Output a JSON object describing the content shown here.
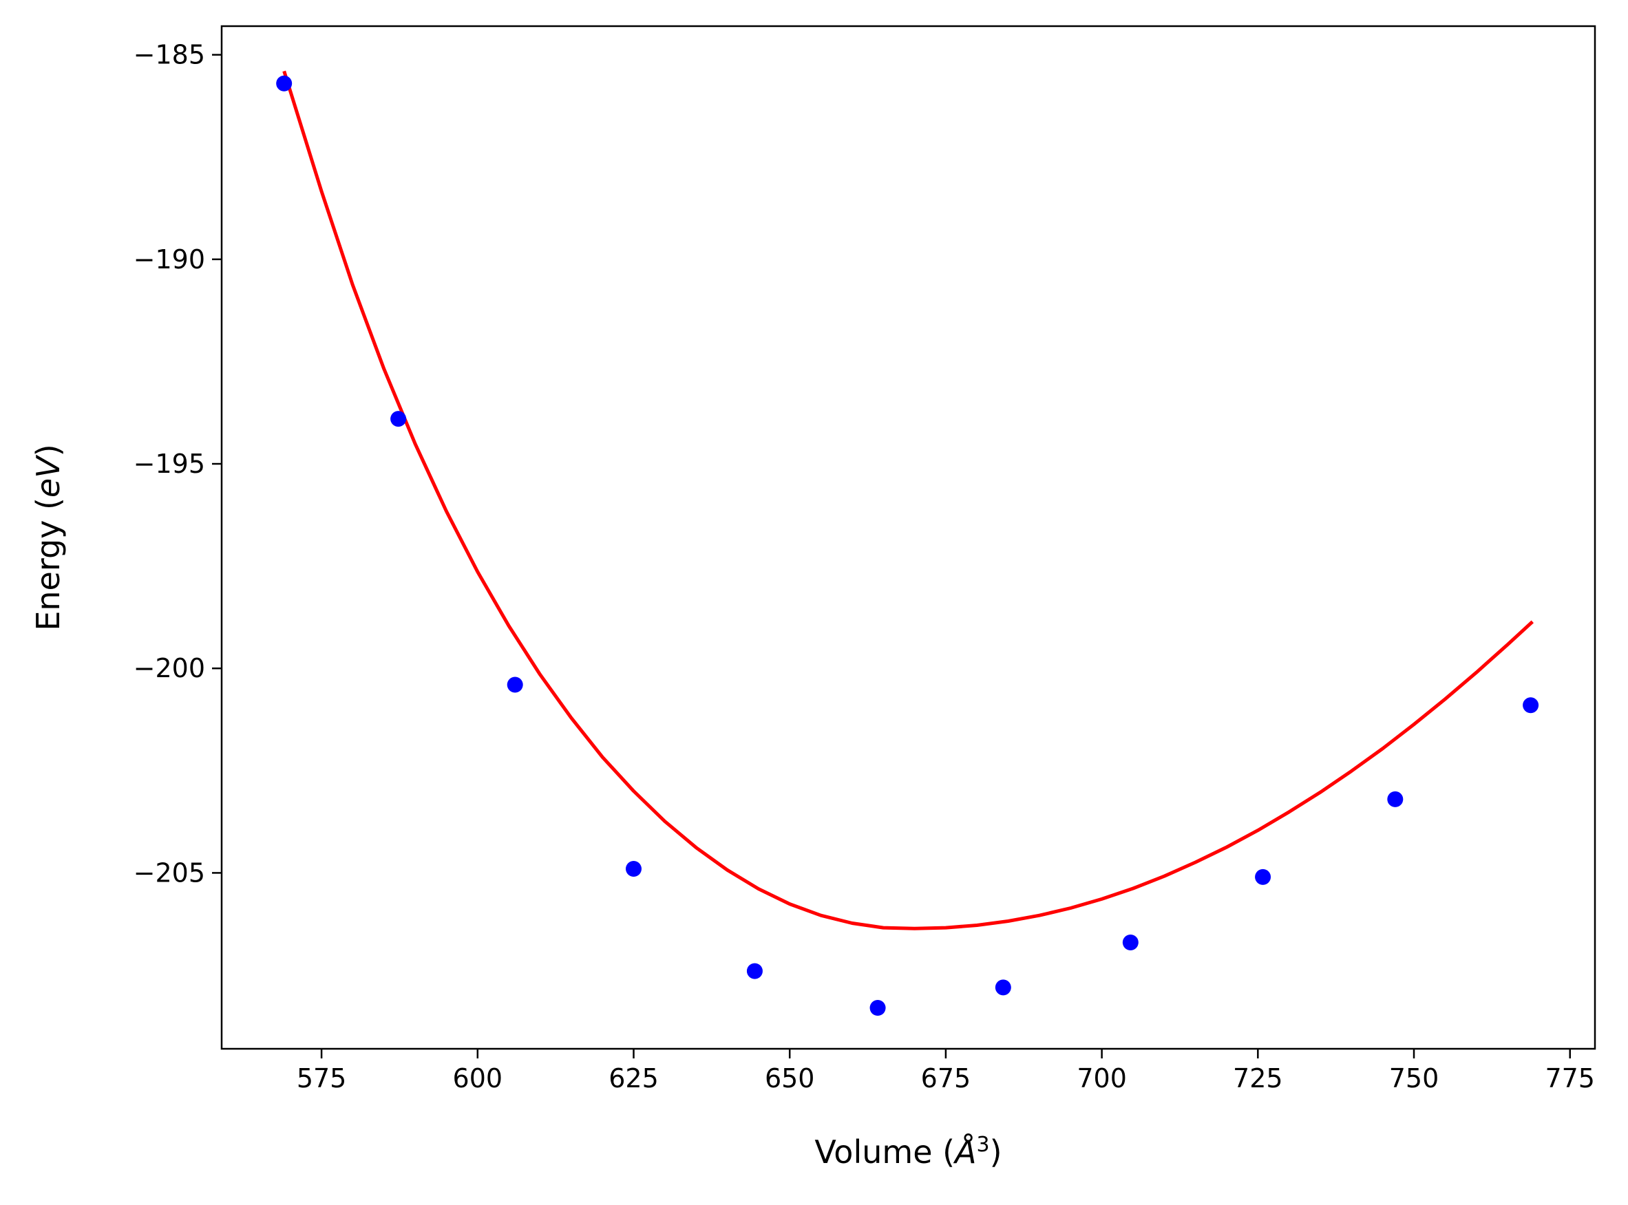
{
  "chart_data": {
    "type": "scatter",
    "title": "",
    "xlabel": "Volume",
    "xlabel_unit": "Å",
    "xlabel_unit_exponent": "3",
    "ylabel": "Energy",
    "ylabel_unit": "eV",
    "xlim": [
      559,
      779
    ],
    "ylim": [
      -209.3,
      -184.3
    ],
    "x_ticks": [
      575,
      600,
      625,
      650,
      675,
      700,
      725,
      750,
      775
    ],
    "y_ticks": [
      -185,
      -190,
      -195,
      -200,
      -205
    ],
    "x_tick_labels": [
      "575",
      "600",
      "625",
      "650",
      "675",
      "700",
      "725",
      "750",
      "775"
    ],
    "y_tick_labels": [
      "−185",
      "−190",
      "−195",
      "−200",
      "−205"
    ],
    "grid": false,
    "series": [
      {
        "kind": "points",
        "color": "#0000ff",
        "x": [
          569.0,
          587.3,
          606.0,
          625.0,
          644.4,
          664.1,
          684.2,
          704.6,
          725.8,
          747.0,
          768.7
        ],
        "y": [
          -185.7,
          -193.9,
          -200.4,
          -204.9,
          -207.4,
          -208.3,
          -207.8,
          -206.7,
          -205.1,
          -203.2,
          -200.9
        ]
      },
      {
        "kind": "fit_curve",
        "color": "#ff0000",
        "x": [
          569,
          575,
          580,
          585,
          590,
          595,
          600,
          605,
          610,
          615,
          620,
          625,
          630,
          635,
          640,
          645,
          650,
          655,
          660,
          665,
          670,
          675,
          680,
          685,
          690,
          695,
          700,
          705,
          710,
          715,
          720,
          725,
          730,
          735,
          740,
          745,
          750,
          755,
          760,
          765,
          769
        ],
        "y": [
          -185.4,
          -188.34,
          -190.63,
          -192.68,
          -194.51,
          -196.16,
          -197.64,
          -198.96,
          -200.15,
          -201.21,
          -202.17,
          -203.0,
          -203.74,
          -204.38,
          -204.93,
          -205.39,
          -205.76,
          -206.04,
          -206.23,
          -206.34,
          -206.36,
          -206.34,
          -206.28,
          -206.18,
          -206.04,
          -205.86,
          -205.64,
          -205.38,
          -205.08,
          -204.74,
          -204.37,
          -203.96,
          -203.51,
          -203.03,
          -202.51,
          -201.96,
          -201.37,
          -200.75,
          -200.1,
          -199.42,
          -198.86
        ]
      }
    ]
  }
}
